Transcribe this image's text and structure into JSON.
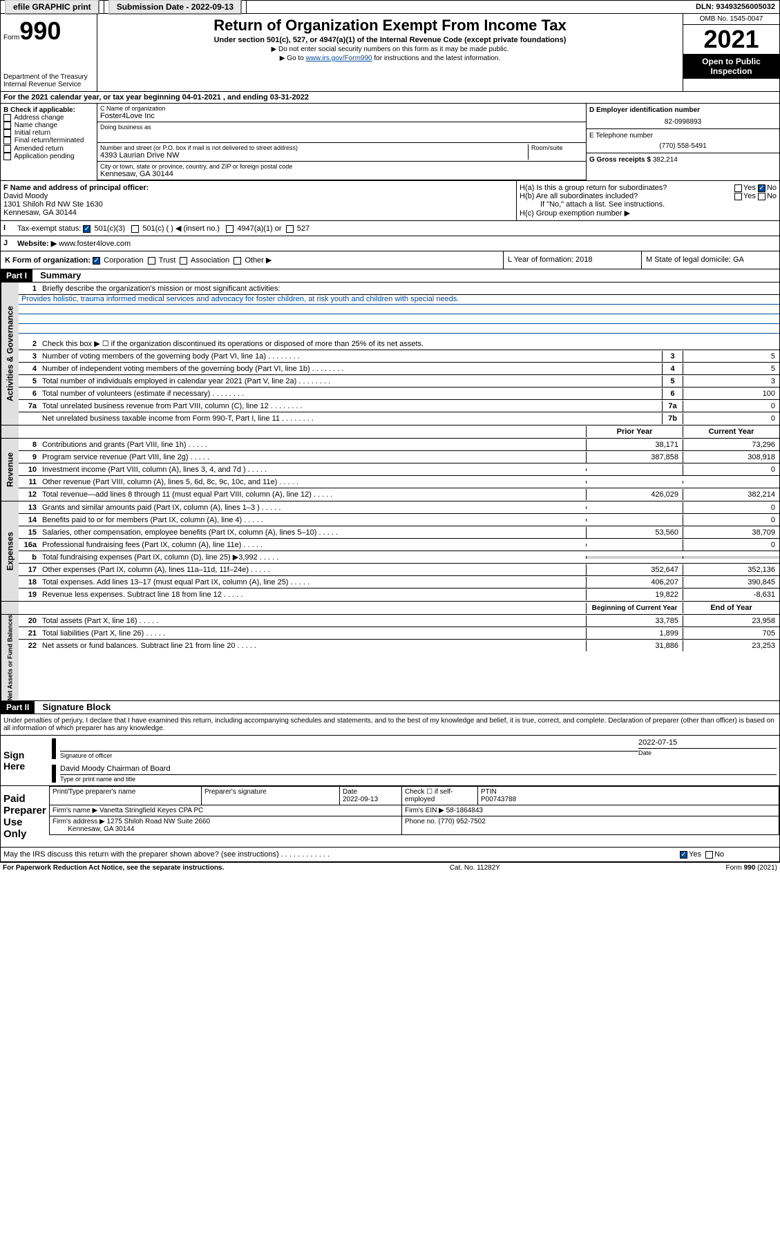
{
  "topbar": {
    "efile": "efile GRAPHIC print",
    "sub_label": "Submission Date - 2022-09-13",
    "dln_label": "DLN: 93493256005032"
  },
  "header": {
    "form_word": "Form",
    "form_num": "990",
    "dept": "Department of the Treasury",
    "irs": "Internal Revenue Service",
    "title": "Return of Organization Exempt From Income Tax",
    "subtitle": "Under section 501(c), 527, or 4947(a)(1) of the Internal Revenue Code (except private foundations)",
    "note1": "▶ Do not enter social security numbers on this form as it may be made public.",
    "note2_pre": "▶ Go to ",
    "note2_link": "www.irs.gov/Form990",
    "note2_post": " for instructions and the latest information.",
    "omb": "OMB No. 1545-0047",
    "year": "2021",
    "public": "Open to Public Inspection"
  },
  "sectionA": {
    "cal_year": "For the 2021 calendar year, or tax year beginning 04-01-2021    , and ending 03-31-2022",
    "b_label": "B Check if applicable:",
    "b_items": [
      "Address change",
      "Name change",
      "Initial return",
      "Final return/terminated",
      "Amended return",
      "Application pending"
    ],
    "c_label": "C Name of organization",
    "org_name": "Foster4Love Inc",
    "dba_label": "Doing business as",
    "addr_label": "Number and street (or P.O. box if mail is not delivered to street address)",
    "room_label": "Room/suite",
    "street": "4393 Laurian Drive NW",
    "city_label": "City or town, state or province, country, and ZIP or foreign postal code",
    "city": "Kennesaw, GA  30144",
    "d_label": "D Employer identification number",
    "ein": "82-0998893",
    "e_label": "E Telephone number",
    "phone": "(770) 558-5491",
    "g_label": "G Gross receipts $",
    "gross": "382,214",
    "f_label": "F  Name and address of principal officer:",
    "officer": "David Moody",
    "officer_addr1": "1301 Shiloh Rd NW Ste 1630",
    "officer_addr2": "Kennesaw, GA  30144",
    "ha_label": "H(a)  Is this a group return for subordinates?",
    "hb_label": "H(b)  Are all subordinates included?",
    "hb_note": "If \"No,\" attach a list. See instructions.",
    "hc_label": "H(c)  Group exemption number ▶",
    "yes": "Yes",
    "no": "No",
    "i_label": "Tax-exempt status:",
    "i_501c3": "501(c)(3)",
    "i_501c": "501(c) (  ) ◀ (insert no.)",
    "i_4947": "4947(a)(1) or",
    "i_527": "527",
    "j_label": "Website: ▶",
    "website": "www.foster4love.com",
    "k_label": "K Form of organization:",
    "k_corp": "Corporation",
    "k_trust": "Trust",
    "k_assoc": "Association",
    "k_other": "Other ▶",
    "l_label": "L Year of formation: 2018",
    "m_label": "M State of legal domicile: GA"
  },
  "part1": {
    "header": "Part I",
    "title": "Summary",
    "line1_label": "Briefly describe the organization's mission or most significant activities:",
    "mission": "Provides holistic, trauma informed medical services and advocacy for foster children, at risk youth and children with special needs.",
    "line2_label": "Check this box ▶ ☐  if the organization discontinued its operations or disposed of more than 25% of its net assets.",
    "lines_gov": [
      {
        "n": "3",
        "t": "Number of voting members of the governing body (Part VI, line 1a)",
        "box": "3",
        "v": "5"
      },
      {
        "n": "4",
        "t": "Number of independent voting members of the governing body (Part VI, line 1b)",
        "box": "4",
        "v": "5"
      },
      {
        "n": "5",
        "t": "Total number of individuals employed in calendar year 2021 (Part V, line 2a)",
        "box": "5",
        "v": "3"
      },
      {
        "n": "6",
        "t": "Total number of volunteers (estimate if necessary)",
        "box": "6",
        "v": "100"
      },
      {
        "n": "7a",
        "t": "Total unrelated business revenue from Part VIII, column (C), line 12",
        "box": "7a",
        "v": "0"
      },
      {
        "n": "",
        "t": "Net unrelated business taxable income from Form 990-T, Part I, line 11",
        "box": "7b",
        "v": "0"
      }
    ],
    "prior_head": "Prior Year",
    "curr_head": "Current Year",
    "rev": [
      {
        "n": "8",
        "t": "Contributions and grants (Part VIII, line 1h)",
        "p": "38,171",
        "c": "73,296"
      },
      {
        "n": "9",
        "t": "Program service revenue (Part VIII, line 2g)",
        "p": "387,858",
        "c": "308,918"
      },
      {
        "n": "10",
        "t": "Investment income (Part VIII, column (A), lines 3, 4, and 7d )",
        "p": "",
        "c": "0"
      },
      {
        "n": "11",
        "t": "Other revenue (Part VIII, column (A), lines 5, 6d, 8c, 9c, 10c, and 11e)",
        "p": "",
        "c": ""
      },
      {
        "n": "12",
        "t": "Total revenue—add lines 8 through 11 (must equal Part VIII, column (A), line 12)",
        "p": "426,029",
        "c": "382,214"
      }
    ],
    "exp": [
      {
        "n": "13",
        "t": "Grants and similar amounts paid (Part IX, column (A), lines 1–3 )",
        "p": "",
        "c": "0"
      },
      {
        "n": "14",
        "t": "Benefits paid to or for members (Part IX, column (A), line 4)",
        "p": "",
        "c": "0"
      },
      {
        "n": "15",
        "t": "Salaries, other compensation, employee benefits (Part IX, column (A), lines 5–10)",
        "p": "53,560",
        "c": "38,709"
      },
      {
        "n": "16a",
        "t": "Professional fundraising fees (Part IX, column (A), line 11e)",
        "p": "",
        "c": "0"
      },
      {
        "n": "b",
        "t": "Total fundraising expenses (Part IX, column (D), line 25) ▶3,992",
        "p": "",
        "c": "",
        "shade": true
      },
      {
        "n": "17",
        "t": "Other expenses (Part IX, column (A), lines 11a–11d, 11f–24e)",
        "p": "352,647",
        "c": "352,136"
      },
      {
        "n": "18",
        "t": "Total expenses. Add lines 13–17 (must equal Part IX, column (A), line 25)",
        "p": "406,207",
        "c": "390,845"
      },
      {
        "n": "19",
        "t": "Revenue less expenses. Subtract line 18 from line 12",
        "p": "19,822",
        "c": "-8,631"
      }
    ],
    "beg_head": "Beginning of Current Year",
    "end_head": "End of Year",
    "net": [
      {
        "n": "20",
        "t": "Total assets (Part X, line 16)",
        "p": "33,785",
        "c": "23,958"
      },
      {
        "n": "21",
        "t": "Total liabilities (Part X, line 26)",
        "p": "1,899",
        "c": "705"
      },
      {
        "n": "22",
        "t": "Net assets or fund balances. Subtract line 21 from line 20",
        "p": "31,886",
        "c": "23,253"
      }
    ],
    "tab_gov": "Activities & Governance",
    "tab_rev": "Revenue",
    "tab_exp": "Expenses",
    "tab_net": "Net Assets or Fund Balances"
  },
  "part2": {
    "header": "Part II",
    "title": "Signature Block",
    "decl": "Under penalties of perjury, I declare that I have examined this return, including accompanying schedules and statements, and to the best of my knowledge and belief, it is true, correct, and complete. Declaration of preparer (other than officer) is based on all information of which preparer has any knowledge.",
    "sign_here": "Sign Here",
    "sig_officer": "Signature of officer",
    "sig_date_label": "Date",
    "sig_date": "2022-07-15",
    "sig_name": "David Moody  Chairman of Board",
    "sig_type": "Type or print name and title",
    "paid_prep": "Paid Preparer Use Only",
    "prep_name_label": "Print/Type preparer's name",
    "prep_sig_label": "Preparer's signature",
    "prep_date_label": "Date",
    "prep_date": "2022-09-13",
    "prep_check": "Check ☐ if self-employed",
    "ptin_label": "PTIN",
    "ptin": "P00743788",
    "firm_name_label": "Firm's name     ▶",
    "firm_name": "Vanetta Stringfield Keyes CPA PC",
    "firm_ein_label": "Firm's EIN ▶",
    "firm_ein": "58-1864843",
    "firm_addr_label": "Firm's address ▶",
    "firm_addr1": "1275 Shiloh Road NW Suite 2660",
    "firm_addr2": "Kennesaw, GA  30144",
    "firm_phone_label": "Phone no.",
    "firm_phone": "(770) 952-7502",
    "may_irs": "May the IRS discuss this return with the preparer shown above? (see instructions)",
    "paperwork": "For Paperwork Reduction Act Notice, see the separate instructions.",
    "cat": "Cat. No. 11282Y",
    "form_foot": "Form 990 (2021)"
  }
}
